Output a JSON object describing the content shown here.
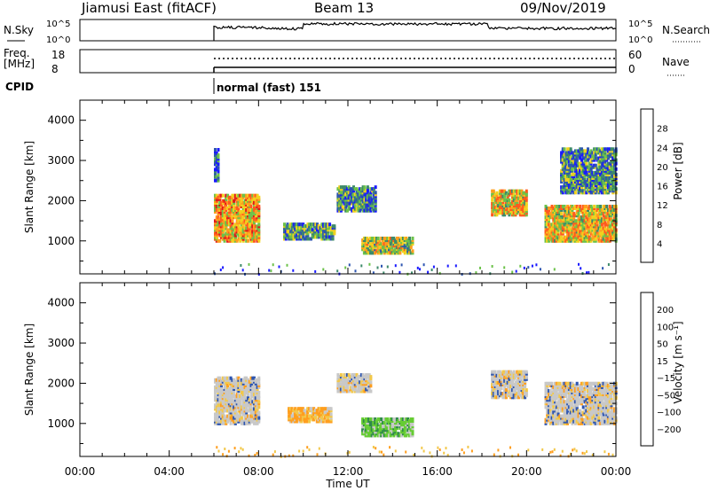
{
  "header": {
    "station": "Jiamusi East (fitACF)",
    "beam": "Beam 13",
    "date": "09/Nov/2019"
  },
  "panels_top": {
    "nsky_label": "N.Sky",
    "nsky_ticks": [
      "10^5",
      "10^0"
    ],
    "nsearch_label": "N.Search",
    "nsearch_ticks": [
      "10^5",
      "10^0"
    ],
    "freq_label": "Freq.",
    "freq_unit": "[MHz]",
    "freq_ticks": [
      "18",
      "8"
    ],
    "nave_label": "Nave",
    "nave_ticks": [
      "60",
      "0"
    ],
    "cpid_label": "CPID",
    "cpid_text": "normal (fast) 151"
  },
  "colors": {
    "power": [
      "#1a1aff",
      "#2d55b0",
      "#3d8a6a",
      "#6cc24a",
      "#f2d21e",
      "#ff9e1e",
      "#ff5a1e",
      "#e0151a"
    ],
    "velocity": [
      "#e0151a",
      "#ff5a1e",
      "#ff9e1e",
      "#f2c84a",
      "#c8c8c8",
      "#66cc33",
      "#2f8a4a",
      "#2d55b0",
      "#1a1aff"
    ],
    "ground": "#b3b3b3"
  },
  "chart_data": [
    {
      "type": "heatmap",
      "name_panel": "power",
      "ylabel": "Slant Range [km]",
      "ylim": [
        180,
        4500
      ],
      "yticks": [
        "4000",
        "3000",
        "2000",
        "1000"
      ],
      "xlim_hours": [
        0,
        24
      ],
      "colorbar_label": "Power [dB]",
      "colorbar_ticks": [
        "28",
        "24",
        "20",
        "16",
        "12",
        "8",
        "4"
      ],
      "colorbar_range": [
        0,
        32
      ],
      "regions": [
        {
          "t0": 6.0,
          "t1": 8.0,
          "r0": 1000,
          "r1": 2150,
          "level": 0.65
        },
        {
          "t0": 6.0,
          "t1": 6.2,
          "r0": 2500,
          "r1": 3300,
          "level": 0.2
        },
        {
          "t0": 9.1,
          "t1": 11.4,
          "r0": 1050,
          "r1": 1450,
          "level": 0.35
        },
        {
          "t0": 11.5,
          "t1": 13.2,
          "r0": 1750,
          "r1": 2350,
          "level": 0.3
        },
        {
          "t0": 12.6,
          "t1": 14.9,
          "r0": 700,
          "r1": 1100,
          "level": 0.5
        },
        {
          "t0": 18.4,
          "t1": 20.0,
          "r0": 1650,
          "r1": 2250,
          "level": 0.6
        },
        {
          "t0": 20.8,
          "t1": 24.0,
          "r0": 1000,
          "r1": 1900,
          "level": 0.6
        },
        {
          "t0": 21.5,
          "t1": 24.0,
          "r0": 2200,
          "r1": 3300,
          "level": 0.3
        }
      ]
    },
    {
      "type": "heatmap",
      "name_panel": "velocity",
      "ylabel": "Slant Range [km]",
      "ylim": [
        180,
        4500
      ],
      "yticks": [
        "4000",
        "3000",
        "2000",
        "1000"
      ],
      "xlim_hours": [
        0,
        24
      ],
      "xticks": [
        "00:00",
        "04:00",
        "08:00",
        "12:00",
        "16:00",
        "20:00",
        "00:00"
      ],
      "xlabel": "Time UT",
      "colorbar_label": "Velocity [m s⁻¹]",
      "colorbar_ticks": [
        "200",
        "100",
        "50",
        "15",
        "−15",
        "−50",
        "−100",
        "−200"
      ],
      "regions": [
        {
          "t0": 6.0,
          "t1": 8.0,
          "r0": 1000,
          "r1": 2150,
          "level": 0.4
        },
        {
          "t0": 9.3,
          "t1": 11.2,
          "r0": 1050,
          "r1": 1400,
          "level": 0.3
        },
        {
          "t0": 11.5,
          "t1": 13.0,
          "r0": 1800,
          "r1": 2250,
          "level": 0.5
        },
        {
          "t0": 12.6,
          "t1": 14.9,
          "r0": 700,
          "r1": 1150,
          "level": 0.65
        },
        {
          "t0": 18.4,
          "t1": 20.0,
          "r0": 1650,
          "r1": 2300,
          "level": 0.5
        },
        {
          "t0": 20.8,
          "t1": 24.0,
          "r0": 1000,
          "r1": 2000,
          "level": 0.5
        }
      ]
    }
  ],
  "xlabel": "Time UT"
}
